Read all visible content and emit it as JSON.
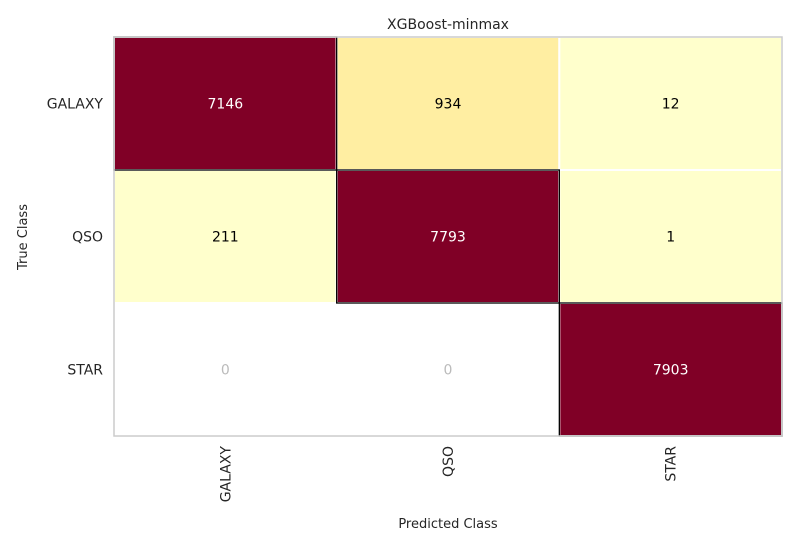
{
  "chart_data": {
    "type": "heatmap",
    "title": "XGBoost-minmax",
    "xlabel": "Predicted Class",
    "ylabel": "True Class",
    "x_categories": [
      "GALAXY",
      "QSO",
      "STAR"
    ],
    "y_categories": [
      "GALAXY",
      "QSO",
      "STAR"
    ],
    "values": [
      [
        7146,
        934,
        12
      ],
      [
        211,
        7793,
        1
      ],
      [
        0,
        0,
        7903
      ]
    ],
    "colors": {
      "max": "#800026",
      "high_mid": "#ffeda0",
      "low": "#ffffcc",
      "zero": "#ffffff",
      "dark_text": "#000000",
      "light_text": "#ffffff",
      "zero_text": "#bbbbbb"
    }
  }
}
